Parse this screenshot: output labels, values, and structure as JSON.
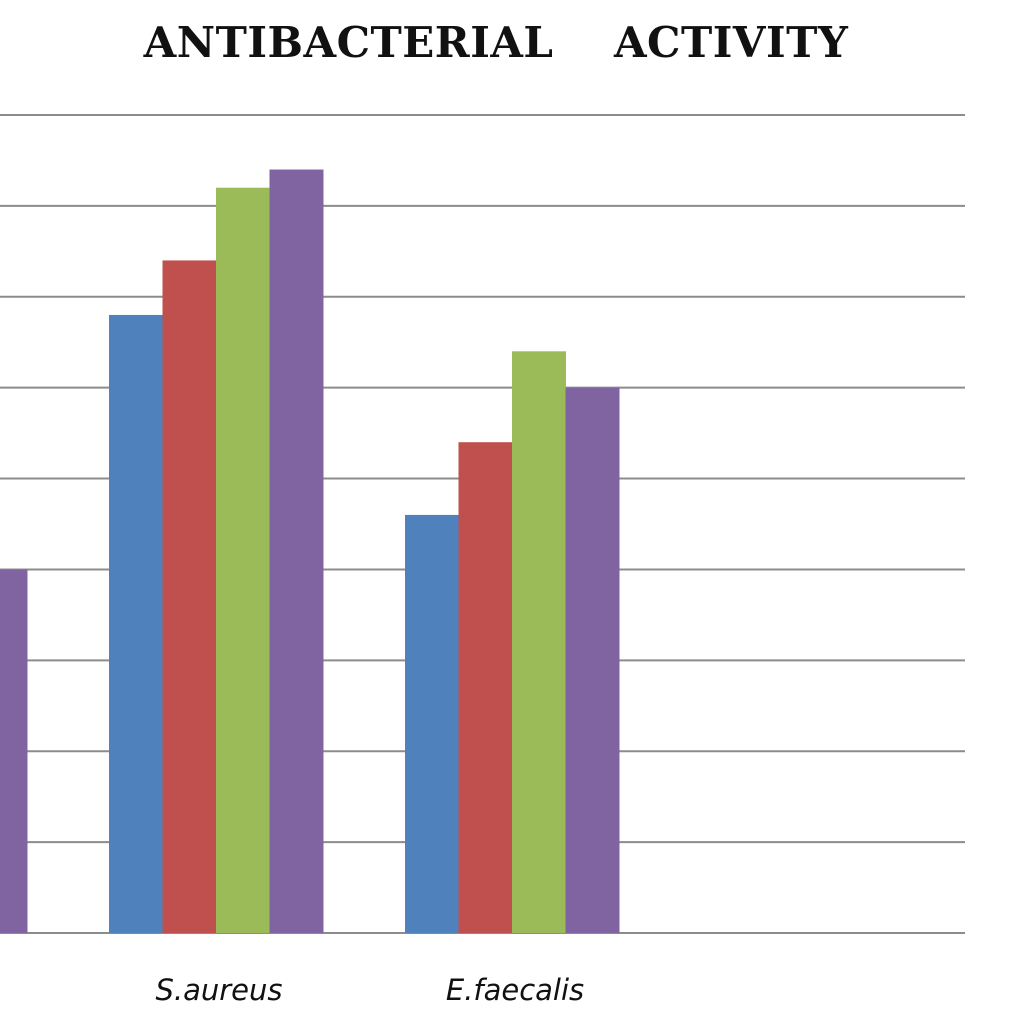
{
  "chart_data": {
    "type": "bar",
    "title": "ANTIBACTERIAL    ACTIVITY",
    "xlabel": "",
    "ylabel": "",
    "categories": [
      "",
      "S.aureus",
      "E.faecalis"
    ],
    "series": [
      {
        "color": "#4f81bd",
        "values": [
          null,
          6.8,
          4.6
        ]
      },
      {
        "color": "#c0504d",
        "values": [
          null,
          7.4,
          5.4
        ]
      },
      {
        "color": "#9bbb59",
        "values": [
          null,
          8.2,
          6.4
        ]
      },
      {
        "color": "#8064a2",
        "values": [
          4.0,
          8.4,
          6.0
        ]
      }
    ],
    "ylim": [
      0,
      9
    ],
    "grid": true,
    "legend": "none"
  }
}
